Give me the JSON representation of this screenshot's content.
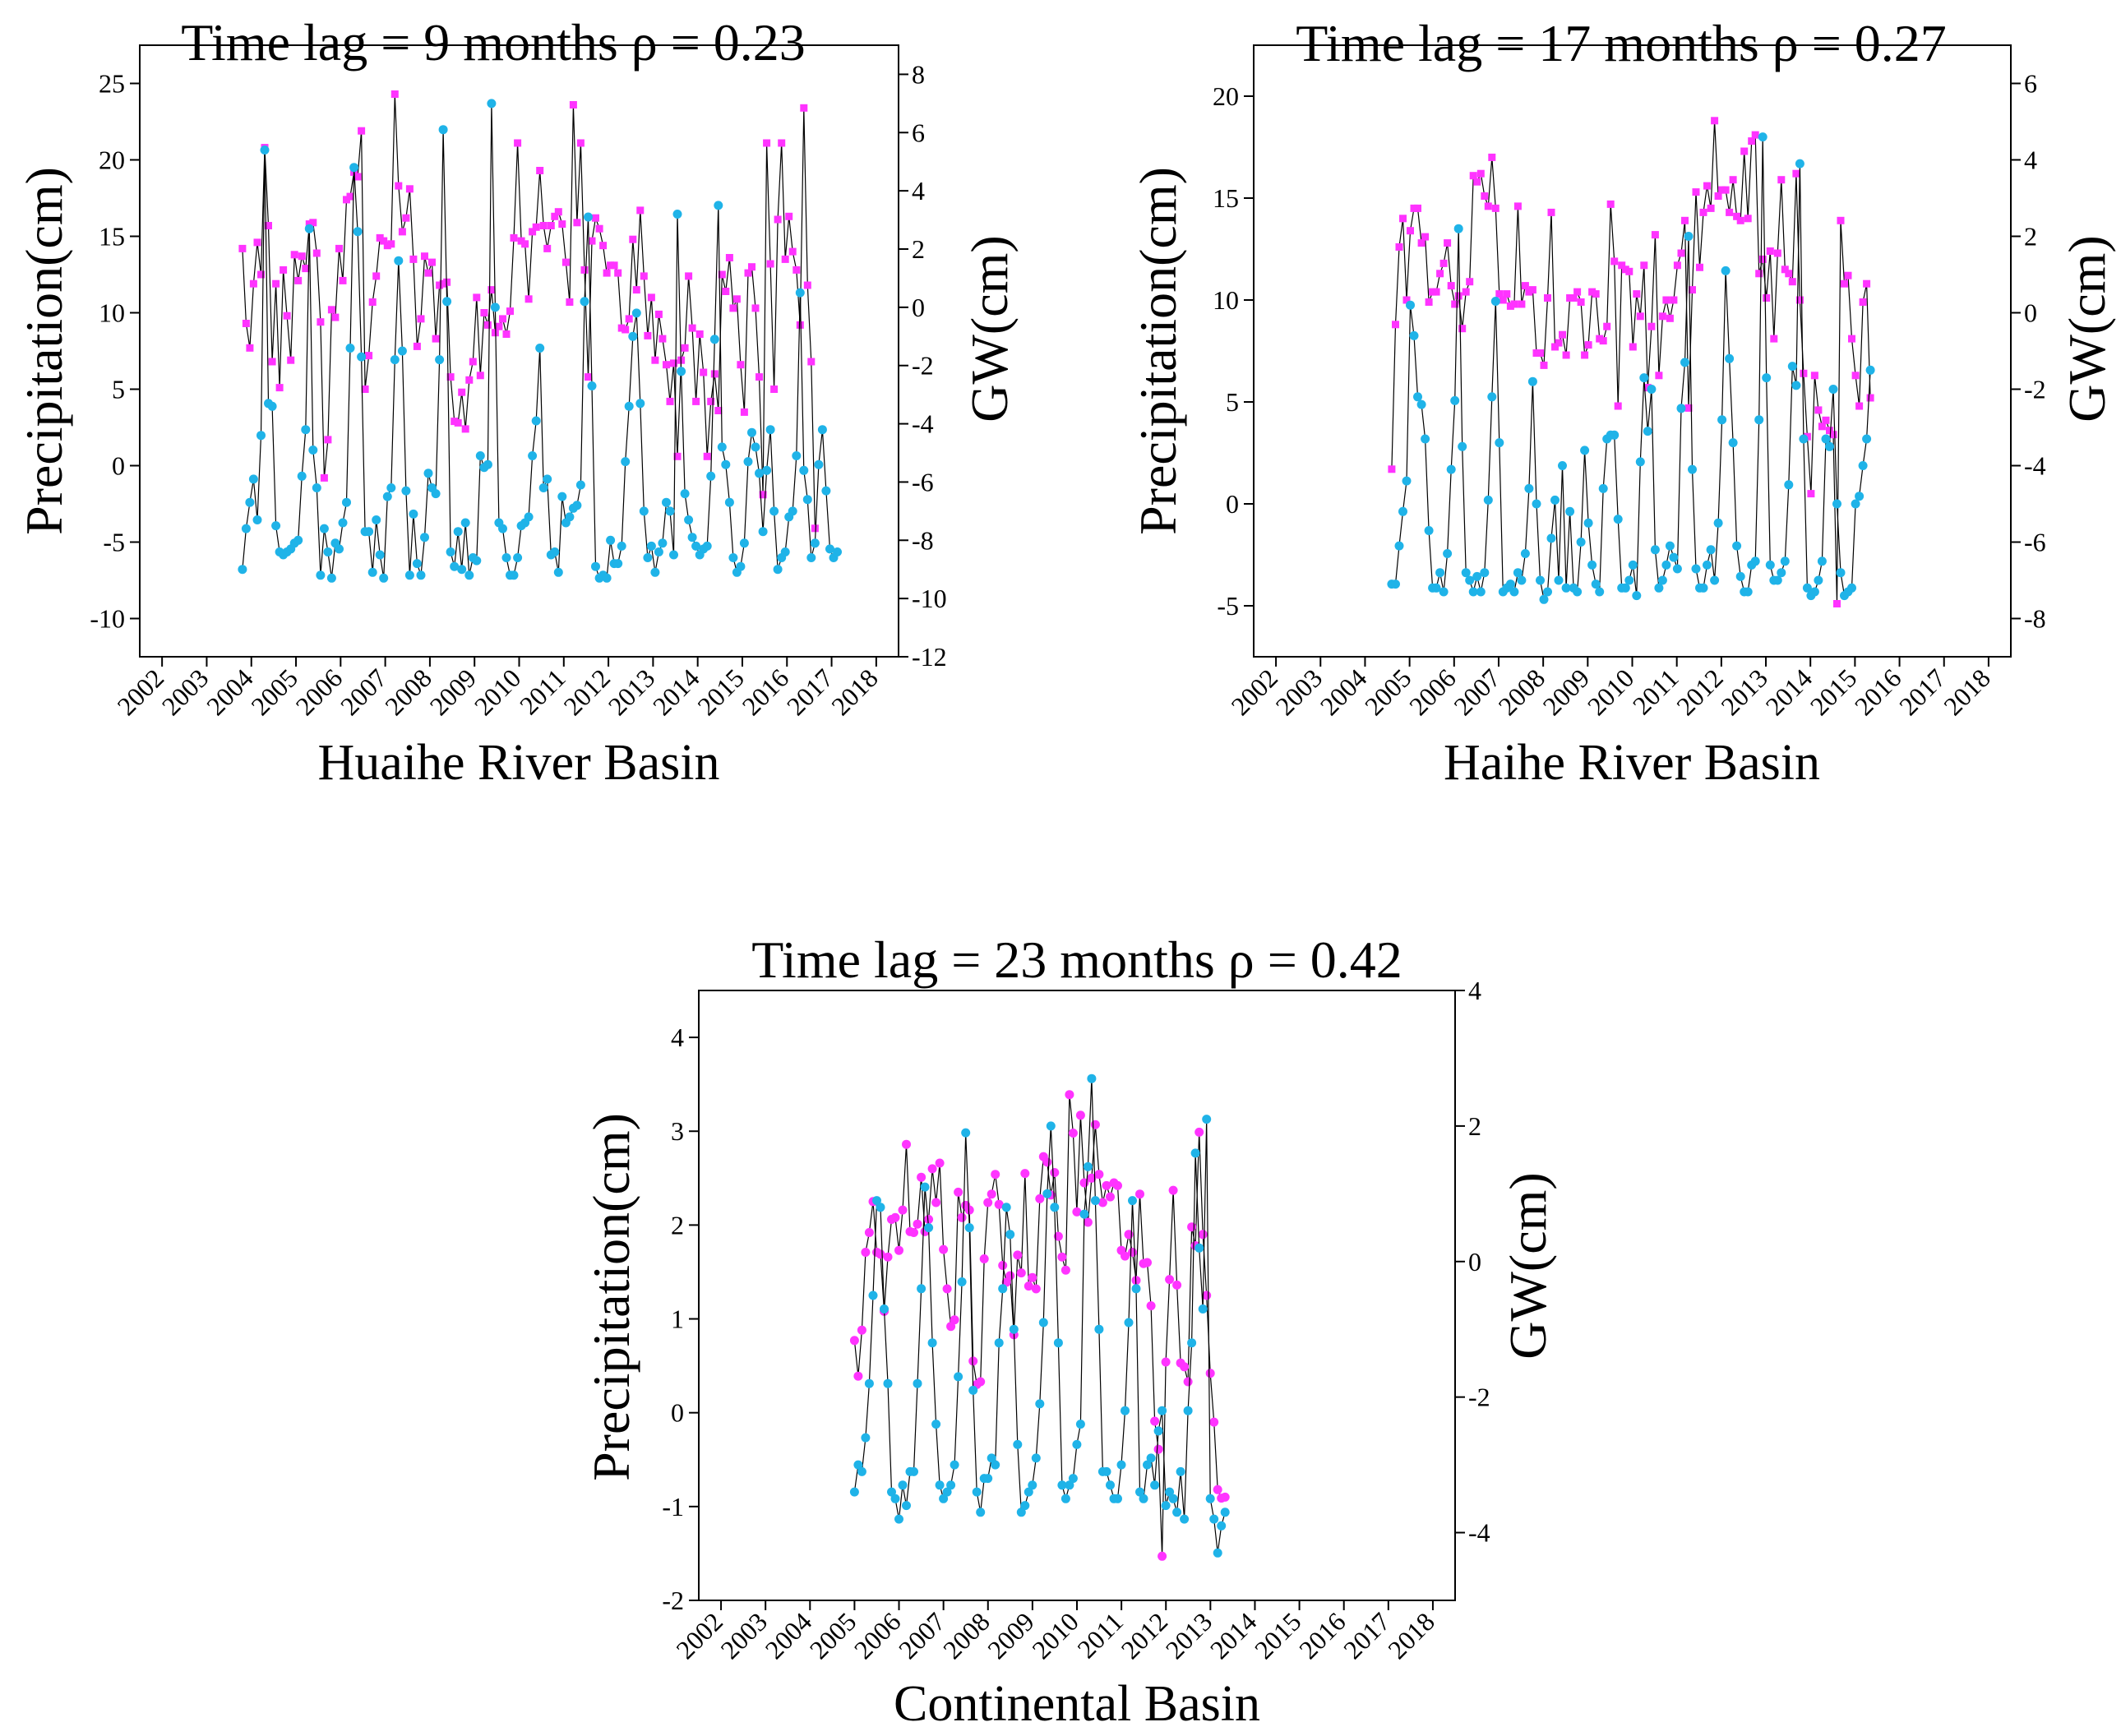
{
  "colors": {
    "precipitation_marker": "#ff33ff",
    "gw_marker": "#1fb3e8",
    "connector_line": "#000000",
    "axes": "#000000"
  },
  "chart_data": [
    {
      "type": "scatter",
      "title": "Time lag = 9 months ρ = 0.23",
      "xlabel": "Huaihe River Basin",
      "ylabel": "Precipitation(cm)",
      "y2label": "GW(cm)",
      "xlim": [
        2001.5,
        2018.5
      ],
      "ylim": [
        -12.5,
        27.5
      ],
      "y2lim": [
        -12,
        9
      ],
      "xticks": [
        2002,
        2003,
        2004,
        2005,
        2006,
        2007,
        2008,
        2009,
        2010,
        2011,
        2012,
        2013,
        2014,
        2015,
        2016,
        2017,
        2018
      ],
      "yticks": [
        -10,
        -5,
        0,
        5,
        10,
        15,
        20,
        25
      ],
      "y2ticks": [
        -12,
        -10,
        -8,
        -6,
        -4,
        -2,
        0,
        2,
        4,
        6,
        8
      ],
      "series": [
        {
          "name": "Precipitation",
          "axis": "left",
          "marker": "square",
          "x_start": 2003.8,
          "x_step": 0.0833,
          "values": [
            14.2,
            9.3,
            7.7,
            11.9,
            14.6,
            12.5,
            20.8,
            15.7,
            6.8,
            11.9,
            5.1,
            12.8,
            9.8,
            6.9,
            13.8,
            12.1,
            13.7,
            12.9,
            15.8,
            15.9,
            13.9,
            9.4,
            -0.8,
            1.7,
            10.2,
            9.7,
            14.2,
            12.1,
            17.4,
            17.6,
            19.2,
            18.9,
            21.9,
            5.0,
            7.2,
            10.7,
            12.4,
            14.9,
            14.7,
            14.4,
            14.5,
            24.3,
            18.3,
            15.3,
            16.2,
            18.1,
            13.5,
            7.8,
            9.6,
            13.7,
            12.6,
            13.3,
            8.3,
            11.8,
            11.9,
            12.0,
            5.8,
            2.9,
            2.8,
            4.8,
            2.4,
            5.6,
            6.8,
            11.0,
            5.9,
            10.0,
            9.2,
            11.5,
            8.7,
            9.1,
            9.6,
            8.6,
            10.1,
            14.9,
            21.1,
            14.7,
            14.5,
            10.9,
            15.3,
            15.6,
            19.3,
            15.7,
            14.2,
            15.7,
            16.3,
            16.6,
            15.8,
            13.3,
            10.7,
            23.6,
            15.9,
            21.1,
            12.8,
            5.8,
            14.7,
            16.2,
            15.5,
            14.4,
            12.6,
            13.1,
            13.1,
            12.6,
            9.0,
            8.9,
            9.6,
            14.8,
            11.5,
            16.7,
            12.4,
            8.5,
            11.0,
            6.9,
            9.9,
            8.3,
            6.6,
            4.2,
            6.7,
            0.6,
            6.9,
            7.7,
            12.4,
            9.0,
            4.2,
            8.6,
            6.1,
            0.6,
            4.2,
            6.0,
            3.6,
            12.5,
            11.4,
            13.6,
            10.3,
            10.9,
            6.6,
            3.5,
            12.6,
            13.0,
            10.3,
            5.8,
            -1.9,
            21.1,
            13.2,
            5.0,
            16.1,
            21.1,
            13.5,
            16.3,
            14.0,
            12.8,
            9.2,
            23.4,
            11.8,
            6.8,
            -4.1
          ]
        },
        {
          "name": "GW",
          "axis": "right",
          "marker": "circle",
          "x_start": 2003.8,
          "x_step": 0.0833,
          "values": [
            -9.0,
            -7.6,
            -6.7,
            -5.9,
            -7.3,
            -4.4,
            5.4,
            -3.3,
            -3.4,
            -7.5,
            -8.4,
            -8.5,
            -8.4,
            -8.3,
            -8.1,
            -8.0,
            -5.8,
            -4.2,
            2.7,
            -4.9,
            -6.2,
            -9.2,
            -7.6,
            -8.4,
            -9.3,
            -8.1,
            -8.3,
            -7.4,
            -6.7,
            -1.4,
            4.8,
            2.6,
            -1.7,
            -7.7,
            -7.7,
            -9.1,
            -7.3,
            -8.5,
            -9.3,
            -6.5,
            -6.2,
            -1.8,
            1.6,
            -1.5,
            -6.3,
            -9.2,
            -7.1,
            -8.8,
            -9.2,
            -7.9,
            -5.7,
            -6.2,
            -6.4,
            -1.8,
            6.1,
            0.2,
            -8.4,
            -8.9,
            -7.7,
            -9.0,
            -7.4,
            -9.2,
            -8.6,
            -8.7,
            -5.1,
            -5.5,
            -5.4,
            7.0,
            0.0,
            -7.4,
            -7.6,
            -8.6,
            -9.2,
            -9.2,
            -8.6,
            -7.5,
            -7.4,
            -7.2,
            -5.1,
            -3.9,
            -1.4,
            -6.2,
            -5.9,
            -8.5,
            -8.4,
            -9.1,
            -6.5,
            -7.4,
            -7.2,
            -6.9,
            -6.8,
            -6.1,
            0.2,
            3.1,
            -2.7,
            -8.9,
            -9.3,
            -9.2,
            -9.3,
            -8.0,
            -8.8,
            -8.8,
            -8.2,
            -5.3,
            -3.4,
            -1.0,
            -0.2,
            -3.3,
            -7.0,
            -8.6,
            -8.2,
            -9.1,
            -8.4,
            -8.1,
            -6.7,
            -7.0,
            -8.5,
            3.2,
            -2.2,
            -6.4,
            -7.3,
            -7.9,
            -8.2,
            -8.5,
            -8.3,
            -8.2,
            -5.8,
            -1.1,
            3.5,
            -4.8,
            -5.4,
            -6.7,
            -8.6,
            -9.1,
            -8.9,
            -8.1,
            -5.3,
            -4.3,
            -4.8,
            -5.7,
            -7.7,
            -5.6,
            -4.2,
            -7.0,
            -9.0,
            -8.6,
            -8.4,
            -7.2,
            -7.0,
            -5.1,
            0.5,
            -5.6,
            -6.6,
            -8.6,
            -8.1,
            -5.4,
            -4.2,
            -6.3,
            -8.3,
            -8.6,
            -8.4
          ]
        }
      ]
    },
    {
      "type": "scatter",
      "title": "Time lag = 17 months ρ = 0.27",
      "xlabel": "Haihe River Basin",
      "ylabel": "Precipitation(cm)",
      "y2label": "GW(cm)",
      "xlim": [
        2001.5,
        2018.5
      ],
      "ylim": [
        -7.5,
        22.5
      ],
      "y2lim": [
        -9,
        7
      ],
      "xticks": [
        2002,
        2003,
        2004,
        2005,
        2006,
        2007,
        2008,
        2009,
        2010,
        2011,
        2012,
        2013,
        2014,
        2015,
        2016,
        2017,
        2018
      ],
      "yticks": [
        -5,
        0,
        5,
        10,
        15,
        20
      ],
      "y2ticks": [
        -8,
        -6,
        -4,
        -2,
        0,
        2,
        4,
        6
      ],
      "series": [
        {
          "name": "Precipitation",
          "axis": "left",
          "marker": "square",
          "x_start": 2004.6,
          "x_step": 0.0833,
          "values": [
            1.7,
            8.8,
            12.6,
            14.0,
            10.0,
            13.4,
            14.5,
            14.5,
            12.8,
            13.1,
            9.9,
            10.4,
            10.4,
            11.3,
            11.8,
            12.8,
            10.7,
            9.8,
            10.2,
            8.6,
            10.4,
            10.9,
            16.1,
            15.8,
            16.2,
            15.1,
            14.6,
            17.0,
            14.5,
            10.3,
            10.0,
            10.3,
            9.7,
            9.8,
            14.6,
            9.8,
            10.7,
            10.4,
            10.5,
            7.4,
            7.4,
            6.8,
            10.1,
            14.3,
            7.7,
            7.9,
            8.3,
            7.3,
            10.1,
            10.1,
            10.4,
            9.9,
            7.3,
            7.8,
            10.4,
            10.3,
            8.1,
            8.0,
            8.7,
            14.7,
            11.9,
            4.8,
            11.7,
            11.5,
            11.4,
            7.7,
            10.3,
            9.2,
            11.7,
            5.7,
            8.7,
            13.2,
            6.3,
            9.2,
            10.0,
            9.1,
            10.0,
            11.7,
            12.3,
            13.9,
            4.7,
            10.5,
            15.3,
            11.6,
            14.3,
            15.6,
            14.5,
            18.8,
            15.1,
            15.4,
            15.4,
            14.3,
            15.9,
            14.1,
            13.9,
            17.3,
            14.0,
            17.8,
            18.1,
            11.3,
            12.0,
            10.1,
            12.4,
            8.1,
            12.3,
            15.9,
            11.5,
            11.3,
            10.9,
            16.2,
            10.0,
            6.4,
            3.3,
            0.5,
            6.3,
            4.6,
            3.8,
            4.1,
            3.6,
            3.4,
            -4.9,
            13.9,
            10.8,
            11.2,
            8.1,
            6.3,
            4.8,
            9.9,
            10.8,
            5.2
          ]
        },
        {
          "name": "GW",
          "axis": "right",
          "marker": "circle",
          "x_start": 2004.6,
          "x_step": 0.0833,
          "values": [
            -7.1,
            -7.1,
            -6.1,
            -5.2,
            -4.4,
            0.2,
            -0.6,
            -2.2,
            -2.4,
            -3.3,
            -5.7,
            -7.2,
            -7.2,
            -6.8,
            -7.3,
            -6.3,
            -4.1,
            -2.3,
            2.2,
            -3.5,
            -6.8,
            -7.0,
            -7.3,
            -6.9,
            -7.3,
            -6.8,
            -4.9,
            -2.2,
            0.3,
            -3.4,
            -7.3,
            -7.2,
            -7.1,
            -7.3,
            -6.8,
            -7.0,
            -6.3,
            -4.6,
            -1.8,
            -5.0,
            -7.0,
            -7.5,
            -7.3,
            -5.9,
            -4.9,
            -7.0,
            -4.0,
            -7.2,
            -5.2,
            -7.2,
            -7.3,
            -6.0,
            -3.6,
            -5.5,
            -6.6,
            -7.1,
            -7.3,
            -4.6,
            -3.3,
            -3.2,
            -3.2,
            -5.4,
            -7.2,
            -7.2,
            -7.0,
            -6.6,
            -7.4,
            -3.9,
            -1.7,
            -3.1,
            -2.0,
            -6.2,
            -7.2,
            -7.0,
            -6.6,
            -6.1,
            -6.4,
            -6.7,
            -2.5,
            -1.3,
            2.0,
            -4.1,
            -6.7,
            -7.2,
            -7.2,
            -6.6,
            -6.2,
            -7.0,
            -5.5,
            -2.8,
            1.1,
            -1.2,
            -3.4,
            -6.1,
            -6.9,
            -7.3,
            -7.3,
            -6.6,
            -6.5,
            -2.8,
            4.6,
            -1.7,
            -6.6,
            -7.0,
            -7.0,
            -6.8,
            -6.5,
            -4.5,
            -1.4,
            -1.9,
            3.9,
            -3.3,
            -7.2,
            -7.4,
            -7.3,
            -7.0,
            -6.5,
            -3.3,
            -3.5,
            -2.0,
            -5.0,
            -6.8,
            -7.4,
            -7.3,
            -7.2,
            -5.0,
            -4.8,
            -4.0,
            -3.3,
            -1.5
          ]
        }
      ]
    },
    {
      "type": "scatter",
      "title": "Time lag = 23 months ρ = 0.42",
      "xlabel": "Continental Basin",
      "ylabel": "Precipitation(cm)",
      "y2label": "GW(cm)",
      "xlim": [
        2001.5,
        2018.5
      ],
      "ylim": [
        -2,
        4.5
      ],
      "y2lim": [
        -5,
        4
      ],
      "xticks": [
        2002,
        2003,
        2004,
        2005,
        2006,
        2007,
        2008,
        2009,
        2010,
        2011,
        2012,
        2013,
        2014,
        2015,
        2016,
        2017,
        2018
      ],
      "yticks": [
        -2,
        -1,
        0,
        1,
        2,
        3,
        4
      ],
      "y2ticks": [
        -4,
        -2,
        0,
        2,
        4
      ],
      "series": [
        {
          "name": "Precipitation",
          "axis": "left",
          "marker": "circle",
          "x_start": 2005.0,
          "x_step": 0.0833,
          "values": [
            0.77,
            0.39,
            0.88,
            1.71,
            1.92,
            2.25,
            1.71,
            1.69,
            1.08,
            1.66,
            2.06,
            2.08,
            1.73,
            2.16,
            2.86,
            1.93,
            1.92,
            2.01,
            2.51,
            1.93,
            2.06,
            2.6,
            2.24,
            2.66,
            1.74,
            1.32,
            0.92,
            0.99,
            2.35,
            2.08,
            2.21,
            2.16,
            0.55,
            0.3,
            0.33,
            1.64,
            2.24,
            2.33,
            2.54,
            2.22,
            1.57,
            1.39,
            1.46,
            0.83,
            1.68,
            1.49,
            2.55,
            1.35,
            1.44,
            1.32,
            2.28,
            2.73,
            2.67,
            2.32,
            2.56,
            1.88,
            1.66,
            1.52,
            3.39,
            2.98,
            2.14,
            3.17,
            2.45,
            2.03,
            2.5,
            3.07,
            2.54,
            2.24,
            2.42,
            2.3,
            2.45,
            2.42,
            1.73,
            1.67,
            1.9,
            1.71,
            1.41,
            2.33,
            1.59,
            1.6,
            1.14,
            -0.09,
            -0.39,
            -1.53,
            0.54,
            1.42,
            2.37,
            1.36,
            0.53,
            0.49,
            0.33,
            1.98,
            1.78,
            2.99,
            1.9,
            1.25,
            0.42,
            -0.1,
            -0.82,
            -0.91,
            -0.9
          ]
        },
        {
          "name": "GW",
          "axis": "right",
          "marker": "circle",
          "x_start": 2005.0,
          "x_step": 0.0833,
          "values": [
            -3.4,
            -3.0,
            -3.1,
            -2.6,
            -1.8,
            -0.5,
            0.9,
            0.8,
            -0.7,
            -1.8,
            -3.4,
            -3.5,
            -3.8,
            -3.3,
            -3.6,
            -3.1,
            -3.1,
            -1.8,
            -0.4,
            1.1,
            0.5,
            -1.2,
            -2.4,
            -3.3,
            -3.5,
            -3.4,
            -3.3,
            -3.0,
            -1.7,
            -0.3,
            1.9,
            0.5,
            -1.9,
            -3.4,
            -3.7,
            -3.2,
            -3.2,
            -2.9,
            -3.0,
            -1.2,
            -0.4,
            0.8,
            0.4,
            -1.0,
            -2.7,
            -3.7,
            -3.6,
            -3.4,
            -3.3,
            -2.9,
            -2.1,
            -0.9,
            1.0,
            2.0,
            0.8,
            -1.2,
            -3.3,
            -3.5,
            -3.3,
            -3.2,
            -2.7,
            -2.4,
            0.7,
            1.4,
            2.7,
            0.9,
            -1.0,
            -3.1,
            -3.1,
            -3.3,
            -3.5,
            -3.5,
            -3.0,
            -2.2,
            -0.9,
            0.9,
            -0.4,
            -3.4,
            -3.5,
            -3.0,
            -2.9,
            -3.3,
            -2.5,
            -2.2,
            -3.6,
            -3.4,
            -3.5,
            -3.7,
            -3.1,
            -3.8,
            -2.2,
            -1.2,
            1.6,
            0.2,
            -0.7,
            2.1,
            -3.5,
            -3.8,
            -4.3,
            -3.9,
            -3.7
          ]
        }
      ]
    }
  ]
}
